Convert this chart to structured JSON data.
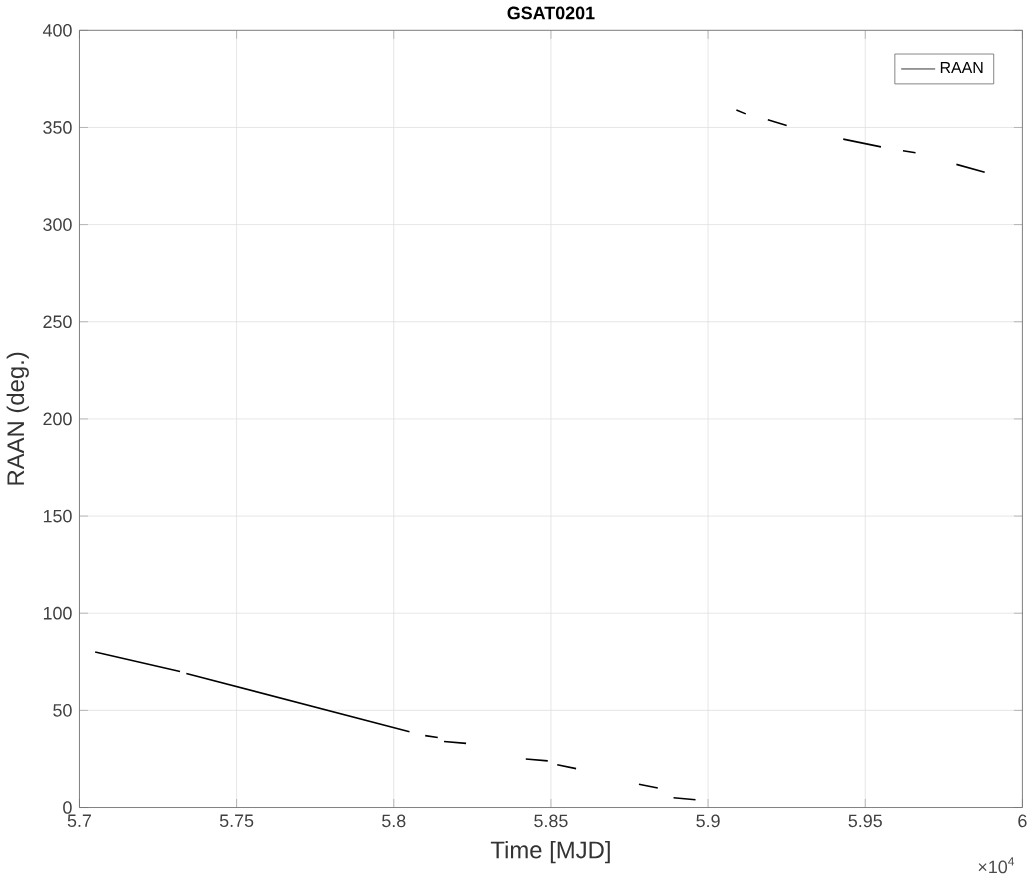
{
  "chart_data": {
    "type": "line",
    "title": "**GSAT0201**",
    "xlabel": "Time [MJD]",
    "ylabel": "RAAN (deg.)",
    "series": [
      {
        "name": "RAAN",
        "color": "#000000",
        "x": [
          5.705,
          5.732,
          null,
          5.734,
          5.805,
          null,
          5.81,
          5.814,
          null,
          5.816,
          5.823,
          null,
          5.842,
          5.849,
          null,
          5.852,
          5.858,
          null,
          5.878,
          5.884,
          null,
          5.889,
          5.896,
          null,
          5.909,
          5.912,
          null,
          5.919,
          5.925,
          null,
          5.943,
          5.955,
          null,
          5.962,
          5.966,
          null,
          5.979,
          5.988
        ],
        "values": [
          80,
          70,
          null,
          69,
          39,
          null,
          37,
          36,
          null,
          34,
          33,
          null,
          25,
          24,
          null,
          22,
          20,
          null,
          12,
          10,
          null,
          5,
          4,
          null,
          359,
          357,
          null,
          354,
          351,
          null,
          344,
          340,
          null,
          338,
          337,
          null,
          331,
          327
        ]
      }
    ],
    "xlim": [
      5.7,
      6
    ],
    "ylim": [
      0,
      400
    ],
    "xticks": [
      5.7,
      5.75,
      5.8,
      5.85,
      5.9,
      5.95,
      6
    ],
    "yticks": [
      0,
      50,
      100,
      150,
      200,
      250,
      300,
      350,
      400
    ],
    "annotations": [
      "×10$^{4}$"
    ],
    "grid": true,
    "legend": "top right",
    "line_style": "solid",
    "marker": "none"
  }
}
